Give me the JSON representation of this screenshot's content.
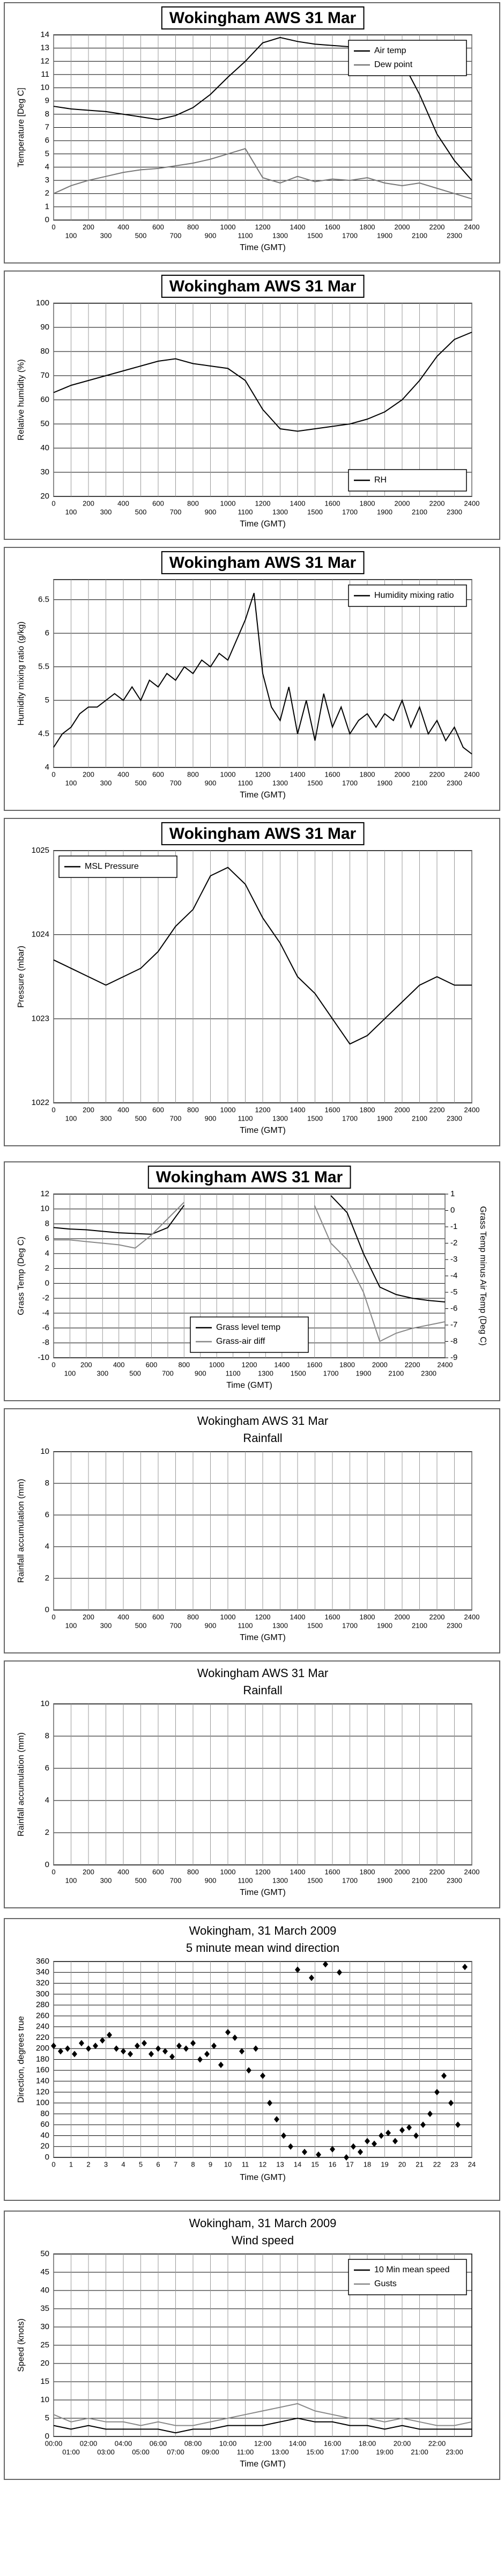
{
  "chart_data": [
    {
      "type": "line",
      "title": "Wokingham AWS 31 Mar",
      "xlabel": "Time (GMT)",
      "ylabel": "Temperature [Deg C]",
      "xlim": [
        0,
        2400
      ],
      "xticks": [
        0,
        100,
        200,
        300,
        400,
        500,
        600,
        700,
        800,
        900,
        1000,
        1100,
        1200,
        1300,
        1400,
        1500,
        1600,
        1700,
        1800,
        1900,
        2000,
        2100,
        2200,
        2300,
        2400
      ],
      "ylim": [
        0,
        14
      ],
      "yticks": [
        0,
        1,
        2,
        3,
        4,
        5,
        6,
        7,
        8,
        9,
        10,
        11,
        12,
        13,
        14
      ],
      "grid": true,
      "legend": "upper right",
      "x": [
        0,
        100,
        200,
        300,
        400,
        500,
        600,
        700,
        800,
        900,
        1000,
        1100,
        1200,
        1300,
        1400,
        1500,
        1600,
        1700,
        1800,
        1900,
        2000,
        2100,
        2200,
        2300,
        2400
      ],
      "series": [
        {
          "name": "Air temp",
          "color": "#000000",
          "values": [
            8.6,
            8.4,
            8.3,
            8.2,
            8.0,
            7.8,
            7.6,
            7.9,
            8.5,
            9.5,
            10.8,
            12.0,
            13.4,
            13.8,
            13.5,
            13.3,
            13.2,
            13.1,
            13.0,
            12.8,
            12.0,
            9.5,
            6.5,
            4.5,
            3.0
          ]
        },
        {
          "name": "Dew point",
          "color": "#777777",
          "values": [
            2.0,
            2.6,
            3.0,
            3.3,
            3.6,
            3.8,
            3.9,
            4.1,
            4.3,
            4.6,
            5.0,
            5.4,
            3.2,
            2.8,
            3.3,
            2.9,
            3.1,
            3.0,
            3.2,
            2.8,
            2.6,
            2.8,
            2.4,
            2.0,
            1.6
          ]
        }
      ]
    },
    {
      "type": "line",
      "title": "Wokingham AWS 31 Mar",
      "xlabel": "Time (GMT)",
      "ylabel": "Relative humidity (%)",
      "xlim": [
        0,
        2400
      ],
      "xticks": [
        0,
        100,
        200,
        300,
        400,
        500,
        600,
        700,
        800,
        900,
        1000,
        1100,
        1200,
        1300,
        1400,
        1500,
        1600,
        1700,
        1800,
        1900,
        2000,
        2100,
        2200,
        2300,
        2400
      ],
      "ylim": [
        20,
        100
      ],
      "yticks": [
        20,
        30,
        40,
        50,
        60,
        70,
        80,
        90,
        100
      ],
      "grid": true,
      "legend": "lower right",
      "x": [
        0,
        100,
        200,
        300,
        400,
        500,
        600,
        700,
        800,
        900,
        1000,
        1100,
        1200,
        1300,
        1400,
        1500,
        1600,
        1700,
        1800,
        1900,
        2000,
        2100,
        2200,
        2300,
        2400
      ],
      "series": [
        {
          "name": "RH",
          "color": "#000000",
          "values": [
            63,
            66,
            68,
            70,
            72,
            74,
            76,
            77,
            75,
            74,
            73,
            68,
            56,
            48,
            47,
            48,
            49,
            50,
            52,
            55,
            60,
            68,
            78,
            85,
            88
          ]
        }
      ]
    },
    {
      "type": "line",
      "title": "Wokingham AWS 31 Mar",
      "xlabel": "Time (GMT)",
      "ylabel": "Humidity mixing ratio (g/kg)",
      "xlim": [
        0,
        2400
      ],
      "xticks": [
        0,
        100,
        200,
        300,
        400,
        500,
        600,
        700,
        800,
        900,
        1000,
        1100,
        1200,
        1300,
        1400,
        1500,
        1600,
        1700,
        1800,
        1900,
        2000,
        2100,
        2200,
        2300,
        2400
      ],
      "ylim": [
        4,
        6.8
      ],
      "yticks": [
        4,
        4.5,
        5,
        5.5,
        6,
        6.5
      ],
      "grid": true,
      "legend": "upper right",
      "x": [
        0,
        50,
        100,
        150,
        200,
        250,
        300,
        350,
        400,
        450,
        500,
        550,
        600,
        650,
        700,
        750,
        800,
        850,
        900,
        950,
        1000,
        1050,
        1100,
        1150,
        1200,
        1250,
        1300,
        1350,
        1400,
        1450,
        1500,
        1550,
        1600,
        1650,
        1700,
        1750,
        1800,
        1850,
        1900,
        1950,
        2000,
        2050,
        2100,
        2150,
        2200,
        2250,
        2300,
        2350,
        2400
      ],
      "series": [
        {
          "name": "Humidity mixing ratio",
          "color": "#000000",
          "values": [
            4.3,
            4.5,
            4.6,
            4.8,
            4.9,
            4.9,
            5.0,
            5.1,
            5.0,
            5.2,
            5.0,
            5.3,
            5.2,
            5.4,
            5.3,
            5.5,
            5.4,
            5.6,
            5.5,
            5.7,
            5.6,
            5.9,
            6.2,
            6.6,
            5.4,
            4.9,
            4.7,
            5.2,
            4.5,
            5.0,
            4.4,
            5.1,
            4.6,
            4.9,
            4.5,
            4.7,
            4.8,
            4.6,
            4.8,
            4.7,
            5.0,
            4.6,
            4.9,
            4.5,
            4.7,
            4.4,
            4.6,
            4.3,
            4.2
          ]
        }
      ]
    },
    {
      "type": "line",
      "title": "Wokingham AWS 31 Mar",
      "xlabel": "Time (GMT)",
      "ylabel": "Pressure (mbar)",
      "xlim": [
        0,
        2400
      ],
      "xticks": [
        0,
        100,
        200,
        300,
        400,
        500,
        600,
        700,
        800,
        900,
        1000,
        1100,
        1200,
        1300,
        1400,
        1500,
        1600,
        1700,
        1800,
        1900,
        2000,
        2100,
        2200,
        2300,
        2400
      ],
      "ylim": [
        1022,
        1025
      ],
      "yticks": [
        1022,
        1023,
        1024,
        1025
      ],
      "grid": true,
      "legend": "upper left",
      "x": [
        0,
        100,
        200,
        300,
        400,
        500,
        600,
        700,
        800,
        900,
        1000,
        1100,
        1200,
        1300,
        1400,
        1500,
        1600,
        1700,
        1800,
        1900,
        2000,
        2100,
        2200,
        2300,
        2400
      ],
      "series": [
        {
          "name": "MSL Pressure",
          "color": "#000000",
          "values": [
            1023.7,
            1023.6,
            1023.5,
            1023.4,
            1023.5,
            1023.6,
            1023.8,
            1024.1,
            1024.3,
            1024.7,
            1024.8,
            1024.6,
            1024.2,
            1023.9,
            1023.5,
            1023.3,
            1023.0,
            1022.7,
            1022.8,
            1023.0,
            1023.2,
            1023.4,
            1023.5,
            1023.4,
            1023.4
          ]
        }
      ]
    },
    {
      "type": "line",
      "title": "Wokingham AWS 31 Mar",
      "xlabel": "Time (GMT)",
      "ylabel": "Grass Temp (Deg C)",
      "y2label": "Grass Temp minus Air Temp (Deg C)",
      "xlim": [
        0,
        2400
      ],
      "xticks": [
        0,
        100,
        200,
        300,
        400,
        500,
        600,
        700,
        800,
        900,
        1000,
        1100,
        1200,
        1300,
        1400,
        1500,
        1600,
        1700,
        1800,
        1900,
        2000,
        2100,
        2200,
        2300,
        2400
      ],
      "ylim": [
        -10,
        12
      ],
      "yticks": [
        -10,
        -8,
        -6,
        -4,
        -2,
        0,
        2,
        4,
        6,
        8,
        10,
        12
      ],
      "y2lim": [
        -9,
        1
      ],
      "y2ticks": [
        -9,
        -8,
        -7,
        -6,
        -5,
        -4,
        -3,
        -2,
        -1,
        0,
        1
      ],
      "grid": true,
      "legend": "lower center",
      "x": [
        0,
        100,
        200,
        300,
        400,
        500,
        600,
        700,
        800,
        900,
        1000,
        1100,
        1200,
        1300,
        1400,
        1500,
        1600,
        1700,
        1800,
        1900,
        2000,
        2100,
        2200,
        2300,
        2400
      ],
      "series": [
        {
          "name": "Grass level temp",
          "color": "#000000",
          "values": [
            7.5,
            7.3,
            7.2,
            7.0,
            6.8,
            6.7,
            6.6,
            7.5,
            10.5,
            null,
            null,
            null,
            null,
            null,
            null,
            null,
            null,
            11.8,
            9.5,
            4.0,
            -0.5,
            -1.5,
            -2.0,
            -2.3,
            -2.5
          ]
        },
        {
          "name": "Grass-air diff",
          "color": "#888888",
          "axis": "y2",
          "values": [
            -1.8,
            -1.8,
            -1.9,
            -2.0,
            -2.1,
            -2.3,
            -1.5,
            -0.5,
            0.5,
            null,
            null,
            null,
            null,
            null,
            null,
            null,
            0.3,
            -2.0,
            -3.0,
            -5.0,
            -8.0,
            -7.5,
            -7.2,
            -7.0,
            -6.8
          ]
        }
      ]
    },
    {
      "type": "line",
      "title": "Wokingham AWS 31 Mar",
      "subtitle": "Rainfall",
      "xlabel": "Time (GMT)",
      "ylabel": "Rainfall accumulation (mm)",
      "xlim": [
        0,
        2400
      ],
      "xticks": [
        0,
        100,
        200,
        300,
        400,
        500,
        600,
        700,
        800,
        900,
        1000,
        1100,
        1200,
        1300,
        1400,
        1500,
        1600,
        1700,
        1800,
        1900,
        2000,
        2100,
        2200,
        2300,
        2400
      ],
      "ylim": [
        0,
        10
      ],
      "yticks": [
        0,
        2,
        4,
        6,
        8,
        10
      ],
      "grid": true
    },
    {
      "type": "line",
      "title": "Wokingham AWS 31 Mar",
      "subtitle": "Rainfall",
      "xlabel": "Time (GMT)",
      "ylabel": "Rainfall accumulation (mm)",
      "xlim": [
        0,
        2400
      ],
      "xticks": [
        0,
        100,
        200,
        300,
        400,
        500,
        600,
        700,
        800,
        900,
        1000,
        1100,
        1200,
        1300,
        1400,
        1500,
        1600,
        1700,
        1800,
        1900,
        2000,
        2100,
        2200,
        2300,
        2400
      ],
      "ylim": [
        0,
        10
      ],
      "yticks": [
        0,
        2,
        4,
        6,
        8,
        10
      ],
      "grid": true
    },
    {
      "type": "scatter",
      "title": "Wokingham,  31 March 2009",
      "subtitle": "5 minute mean wind direction",
      "xlabel": "Time (GMT)",
      "ylabel": "Direction, degrees true",
      "xlim": [
        0,
        24
      ],
      "xticks": [
        0,
        1,
        2,
        3,
        4,
        5,
        6,
        7,
        8,
        9,
        10,
        11,
        12,
        13,
        14,
        15,
        16,
        17,
        18,
        19,
        20,
        21,
        22,
        23,
        24
      ],
      "ylim": [
        0,
        360
      ],
      "yticks": [
        0,
        20,
        40,
        60,
        80,
        100,
        120,
        140,
        160,
        180,
        200,
        220,
        240,
        260,
        280,
        300,
        320,
        340,
        360
      ],
      "grid": true,
      "x": [
        0,
        0.4,
        0.8,
        1.2,
        1.6,
        2,
        2.4,
        2.8,
        3.2,
        3.6,
        4,
        4.4,
        4.8,
        5.2,
        5.6,
        6,
        6.4,
        6.8,
        7.2,
        7.6,
        8,
        8.4,
        8.8,
        9.2,
        9.6,
        10,
        10.4,
        10.8,
        11.2,
        11.6,
        12,
        12.4,
        12.8,
        13.2,
        13.6,
        14,
        14.4,
        14.8,
        15.2,
        15.6,
        16,
        16.4,
        16.8,
        17.2,
        17.6,
        18,
        18.4,
        18.8,
        19.2,
        19.6,
        20,
        20.4,
        20.8,
        21.2,
        21.6,
        22,
        22.4,
        22.8,
        23.2,
        23.6
      ],
      "series": [
        {
          "color": "#000000",
          "values": [
            205,
            195,
            200,
            190,
            210,
            200,
            205,
            215,
            225,
            200,
            195,
            190,
            205,
            210,
            190,
            200,
            195,
            185,
            205,
            200,
            210,
            180,
            190,
            205,
            170,
            230,
            220,
            195,
            160,
            200,
            150,
            100,
            70,
            40,
            20,
            345,
            10,
            330,
            5,
            355,
            15,
            340,
            0,
            20,
            10,
            30,
            25,
            40,
            45,
            30,
            50,
            55,
            40,
            60,
            80,
            120,
            150,
            100,
            60,
            350
          ]
        }
      ]
    },
    {
      "type": "line",
      "title": "Wokingham,  31 March 2009",
      "subtitle": "Wind speed",
      "xlabel": "Time (GMT)",
      "ylabel": "Speed (knots)",
      "xlim": [
        0,
        24
      ],
      "xticks": [
        {
          "value": 0,
          "label": "00:00"
        },
        {
          "value": 1,
          "label": "01:00"
        },
        {
          "value": 2,
          "label": "02:00"
        },
        {
          "value": 3,
          "label": "03:00"
        },
        {
          "value": 4,
          "label": "04:00"
        },
        {
          "value": 5,
          "label": "05:00"
        },
        {
          "value": 6,
          "label": "06:00"
        },
        {
          "value": 7,
          "label": "07:00"
        },
        {
          "value": 8,
          "label": "08:00"
        },
        {
          "value": 9,
          "label": "09:00"
        },
        {
          "value": 10,
          "label": "10:00"
        },
        {
          "value": 11,
          "label": "11:00"
        },
        {
          "value": 12,
          "label": "12:00"
        },
        {
          "value": 13,
          "label": "13:00"
        },
        {
          "value": 14,
          "label": "14:00"
        },
        {
          "value": 15,
          "label": "15:00"
        },
        {
          "value": 16,
          "label": "16:00"
        },
        {
          "value": 17,
          "label": "17:00"
        },
        {
          "value": 18,
          "label": "18:00"
        },
        {
          "value": 19,
          "label": "19:00"
        },
        {
          "value": 20,
          "label": "20:00"
        },
        {
          "value": 21,
          "label": "21:00"
        },
        {
          "value": 22,
          "label": "22:00"
        },
        {
          "value": 23,
          "label": "23:00"
        }
      ],
      "ylim": [
        0,
        50
      ],
      "yticks": [
        0,
        5,
        10,
        15,
        20,
        25,
        30,
        35,
        40,
        45,
        50
      ],
      "grid": true,
      "legend": "upper right",
      "x": [
        0,
        1,
        2,
        3,
        4,
        5,
        6,
        7,
        8,
        9,
        10,
        11,
        12,
        13,
        14,
        15,
        16,
        17,
        18,
        19,
        20,
        21,
        22,
        23,
        24
      ],
      "series": [
        {
          "name": "10 Min mean speed",
          "color": "#000000",
          "values": [
            3,
            2,
            3,
            2,
            2,
            2,
            2,
            1,
            2,
            2,
            3,
            3,
            3,
            4,
            5,
            4,
            4,
            3,
            3,
            2,
            3,
            2,
            2,
            2,
            2
          ]
        },
        {
          "name": "Gusts",
          "color": "#888888",
          "values": [
            6,
            4,
            5,
            4,
            4,
            3,
            4,
            3,
            3,
            4,
            5,
            6,
            7,
            8,
            9,
            7,
            6,
            5,
            5,
            4,
            5,
            4,
            3,
            3,
            4
          ]
        }
      ]
    }
  ]
}
